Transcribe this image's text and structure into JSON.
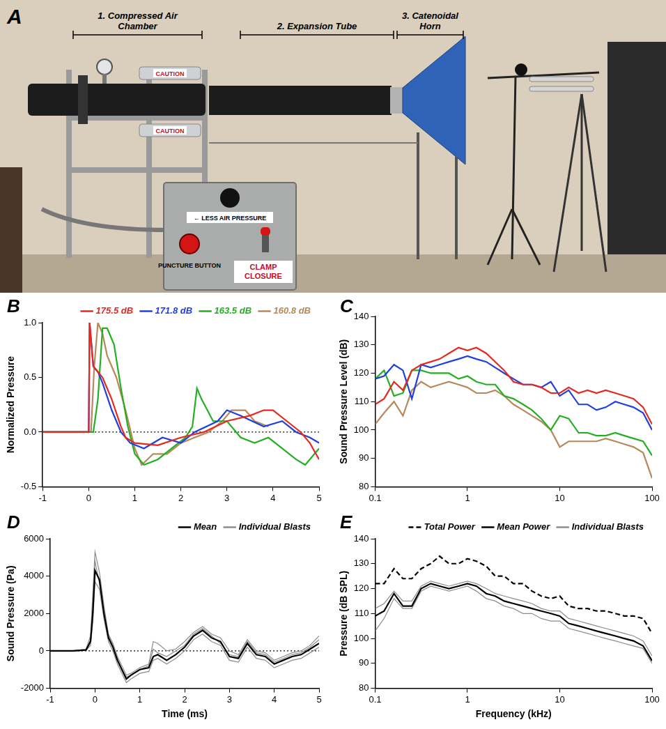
{
  "panel_a": {
    "panel": "A",
    "sections": [
      "1. Compressed Air Chamber",
      "2. Expansion Tube",
      "3. Catenoidal Horn"
    ],
    "box_labels": {
      "knob": "← LESS AIR PRESSURE",
      "button": "PUNCTURE BUTTON",
      "switch": "CLAMP CLOSURE"
    },
    "cylinder_labels": [
      "CAUTION",
      "CAUTION"
    ]
  },
  "chart_data": [
    {
      "type": "line",
      "panel": "B",
      "y_label": "Normalized Pressure",
      "xlim": [
        -1,
        5
      ],
      "xticks": [
        -1,
        0,
        1,
        2,
        3,
        4,
        5
      ],
      "ylim": [
        -0.5,
        1.0
      ],
      "yticks": [
        -0.5,
        {
          "value": 0,
          "label": "0.0"
        },
        0.5,
        {
          "value": 1,
          "label": "1.0"
        }
      ],
      "reference_line": 0,
      "grid": false,
      "legend": "top-right",
      "series": [
        {
          "name": "175.5 dB",
          "color": "#e8281e",
          "x": [
            -1,
            0,
            0.02,
            0.1,
            0.3,
            0.5,
            0.7,
            0.8,
            1.0,
            1.5,
            2.0,
            2.5,
            3.0,
            3.5,
            3.8,
            4.0,
            4.3,
            4.6,
            4.8,
            5
          ],
          "values": [
            0,
            0,
            1.0,
            0.6,
            0.5,
            0.3,
            0.05,
            -0.05,
            -0.1,
            -0.12,
            -0.05,
            0,
            0.1,
            0.15,
            0.2,
            0.2,
            0.1,
            0,
            -0.1,
            -0.25
          ]
        },
        {
          "name": "171.8 dB",
          "color": "#1f3fe0",
          "x": [
            -1,
            0,
            0.02,
            0.1,
            0.2,
            0.3,
            0.5,
            0.7,
            0.9,
            1.2,
            1.6,
            2.0,
            2.3,
            2.8,
            3.0,
            3.3,
            3.8,
            4.2,
            4.5,
            4.8,
            5
          ],
          "values": [
            0,
            0,
            1.0,
            0.6,
            0.55,
            0.45,
            0.2,
            0,
            -0.1,
            -0.15,
            -0.05,
            -0.1,
            0,
            0.1,
            0.2,
            0.15,
            0.05,
            0.1,
            0,
            -0.05,
            -0.1
          ]
        },
        {
          "name": "163.5 dB",
          "color": "#22b022",
          "x": [
            -1,
            0.1,
            0.2,
            0.3,
            0.4,
            0.55,
            0.7,
            0.85,
            1.0,
            1.2,
            1.5,
            1.8,
            2.1,
            2.25,
            2.35,
            2.45,
            2.7,
            3.0,
            3.3,
            3.6,
            3.9,
            4.2,
            4.5,
            4.7,
            4.9,
            5
          ],
          "values": [
            0,
            0,
            0.3,
            0.95,
            0.95,
            0.8,
            0.4,
            0.05,
            -0.2,
            -0.3,
            -0.25,
            -0.15,
            -0.05,
            0.05,
            0.4,
            0.3,
            0.1,
            0.1,
            -0.05,
            -0.1,
            -0.05,
            -0.15,
            -0.25,
            -0.3,
            -0.2,
            -0.15
          ]
        },
        {
          "name": "160.8 dB",
          "color": "#b8885a",
          "x": [
            -1,
            0.05,
            0.12,
            0.2,
            0.3,
            0.4,
            0.6,
            0.8,
            1.0,
            1.15,
            1.4,
            1.7,
            2.0,
            2.3,
            2.6,
            2.9,
            3.1,
            3.4,
            3.6,
            3.9
          ],
          "values": [
            0,
            0,
            0.6,
            1.0,
            0.9,
            0.7,
            0.5,
            0.2,
            -0.15,
            -0.3,
            -0.2,
            -0.2,
            -0.1,
            -0.05,
            0,
            0.1,
            0.2,
            0.2,
            0.1,
            0.05
          ]
        }
      ]
    },
    {
      "type": "line",
      "panel": "C",
      "y_label": "Sound Pressure Level (dB)",
      "log": "x",
      "xlim": [
        0.1,
        100
      ],
      "xticks": [
        0.1,
        1,
        10,
        100
      ],
      "ylim": [
        80,
        140
      ],
      "yticks": [
        80,
        90,
        100,
        110,
        120,
        130,
        140
      ],
      "grid": false,
      "x": [
        0.1,
        0.125,
        0.16,
        0.2,
        0.25,
        0.315,
        0.4,
        0.5,
        0.63,
        0.8,
        1,
        1.25,
        1.6,
        2,
        2.5,
        3.15,
        4,
        5,
        6.3,
        8,
        10,
        12.5,
        16,
        20,
        25,
        31.5,
        40,
        50,
        63,
        80,
        100
      ],
      "series": [
        {
          "name": "175.5 dB",
          "color": "#e8281e",
          "values": [
            109,
            111,
            117,
            114,
            121,
            123,
            124,
            125,
            127,
            129,
            128,
            129,
            127,
            124,
            121,
            117,
            116,
            116,
            115,
            113,
            113,
            115,
            113,
            114,
            113,
            114,
            113,
            112,
            111,
            108,
            102
          ]
        },
        {
          "name": "171.8 dB",
          "color": "#1f3fe0",
          "values": [
            118,
            119,
            123,
            121,
            111,
            123,
            122,
            123,
            124,
            125,
            126,
            125,
            124,
            122,
            120,
            118,
            116,
            116,
            115,
            117,
            112,
            114,
            109,
            109,
            107,
            108,
            110,
            109,
            108,
            106,
            100
          ]
        },
        {
          "name": "163.5 dB",
          "color": "#22b022",
          "values": [
            118,
            121,
            112,
            113,
            121,
            121,
            120,
            120,
            120,
            118,
            119,
            117,
            116,
            116,
            112,
            111,
            109,
            107,
            104,
            100,
            105,
            104,
            99,
            99,
            98,
            98,
            99,
            98,
            97,
            96,
            91
          ]
        },
        {
          "name": "160.8 dB",
          "color": "#b8885a",
          "values": [
            102,
            106,
            110,
            105,
            114,
            117,
            115,
            116,
            117,
            116,
            115,
            113,
            113,
            114,
            112,
            109,
            107,
            105,
            103,
            100,
            94,
            96,
            96,
            96,
            96,
            97,
            96,
            95,
            94,
            92,
            83
          ]
        }
      ]
    },
    {
      "type": "line",
      "panel": "D",
      "x_label": "Time (ms)",
      "y_label": "Sound Pressure (Pa)",
      "xlim": [
        -1,
        5
      ],
      "xticks": [
        -1,
        0,
        1,
        2,
        3,
        4,
        5
      ],
      "ylim": [
        -2000,
        6000
      ],
      "yticks": [
        -2000,
        0,
        2000,
        4000,
        6000
      ],
      "reference_line": 0,
      "grid": false,
      "legend": "top-right",
      "x": [
        -1,
        -0.5,
        -0.2,
        -0.1,
        -0.05,
        0,
        0.1,
        0.2,
        0.3,
        0.4,
        0.5,
        0.6,
        0.7,
        0.8,
        1.0,
        1.2,
        1.3,
        1.4,
        1.6,
        1.8,
        2.0,
        2.2,
        2.4,
        2.6,
        2.8,
        3.0,
        3.2,
        3.4,
        3.6,
        3.8,
        4.0,
        4.2,
        4.4,
        4.6,
        4.8,
        5.0
      ],
      "series": [
        {
          "name": "Mean",
          "color": "#000000",
          "values": [
            0,
            0,
            50,
            500,
            2000,
            4300,
            3800,
            2000,
            700,
            200,
            -500,
            -1000,
            -1500,
            -1300,
            -1000,
            -900,
            -300,
            -200,
            -500,
            -200,
            200,
            800,
            1100,
            700,
            500,
            -300,
            -400,
            400,
            -200,
            -300,
            -700,
            -500,
            -300,
            -200,
            100,
            400
          ]
        },
        {
          "name": "Individual Blasts",
          "color": "#8c8c8c",
          "values": [
            [
              0,
              0,
              100,
              800,
              3000,
              5300,
              4200,
              2400,
              900,
              400,
              -300,
              -800,
              -1300,
              -1200,
              -900,
              -700,
              500,
              400,
              0,
              100,
              500,
              1000,
              1300,
              900,
              700,
              0,
              -200,
              600,
              0,
              -100,
              -500,
              -300,
              -100,
              0,
              300,
              800
            ],
            [
              0,
              0,
              20,
              300,
              1500,
              3700,
              3300,
              1700,
              500,
              0,
              -700,
              -1200,
              -1700,
              -1500,
              -1200,
              -1100,
              -500,
              -400,
              -700,
              -400,
              0,
              600,
              900,
              500,
              300,
              -500,
              -600,
              200,
              -400,
              -500,
              -900,
              -700,
              -500,
              -400,
              -100,
              200
            ],
            [
              0,
              0,
              60,
              600,
              2500,
              4800,
              3600,
              1900,
              800,
              300,
              -400,
              -1000,
              -1400,
              -1300,
              -1000,
              -800,
              100,
              -100,
              -300,
              0,
              300,
              900,
              1200,
              800,
              400,
              -200,
              -300,
              500,
              -100,
              -200,
              -600,
              -400,
              -200,
              -100,
              200,
              600
            ]
          ]
        }
      ]
    },
    {
      "type": "line",
      "panel": "E",
      "x_label": "Frequency (kHz)",
      "y_label": "Pressure (dB SPL)",
      "log": "x",
      "xlim": [
        0.1,
        100
      ],
      "xticks": [
        0.1,
        1,
        10,
        100
      ],
      "ylim": [
        80,
        140
      ],
      "yticks": [
        80,
        90,
        100,
        110,
        120,
        130,
        140
      ],
      "grid": false,
      "legend": "top-right",
      "x": [
        0.1,
        0.125,
        0.16,
        0.2,
        0.25,
        0.315,
        0.4,
        0.5,
        0.63,
        0.8,
        1,
        1.25,
        1.6,
        2,
        2.5,
        3.15,
        4,
        5,
        6.3,
        8,
        10,
        12.5,
        16,
        20,
        25,
        31.5,
        40,
        50,
        63,
        80,
        100
      ],
      "series": [
        {
          "name": "Total Power",
          "color": "#000000",
          "line_style": "dashed",
          "values": [
            122,
            122,
            128,
            124,
            124,
            128,
            130,
            133,
            130,
            130,
            132,
            131,
            129,
            125,
            125,
            122,
            122,
            119,
            117,
            116,
            117,
            113,
            112,
            112,
            111,
            111,
            110,
            109,
            109,
            108,
            102
          ]
        },
        {
          "name": "Mean Power",
          "color": "#000000",
          "values": [
            109,
            111,
            118,
            113,
            113,
            120,
            122,
            121,
            120,
            121,
            122,
            121,
            118,
            117,
            115,
            114,
            113,
            112,
            111,
            110,
            109,
            106,
            105,
            104,
            103,
            102,
            101,
            100,
            99,
            97,
            91
          ]
        },
        {
          "name": "Individual Blasts",
          "color": "#8c8c8c",
          "values": [
            [
              112,
              114,
              119,
              115,
              115,
              121,
              123,
              122,
              121,
              122,
              123,
              122,
              120,
              118,
              117,
              116,
              115,
              114,
              112,
              111,
              111,
              108,
              107,
              106,
              105,
              104,
              103,
              102,
              101,
              99,
              93
            ],
            [
              103,
              108,
              116,
              112,
              112,
              119,
              121,
              120,
              119,
              120,
              121,
              119,
              116,
              115,
              113,
              112,
              110,
              110,
              108,
              107,
              107,
              104,
              103,
              102,
              101,
              100,
              99,
              98,
              97,
              96,
              90
            ]
          ]
        }
      ]
    }
  ]
}
